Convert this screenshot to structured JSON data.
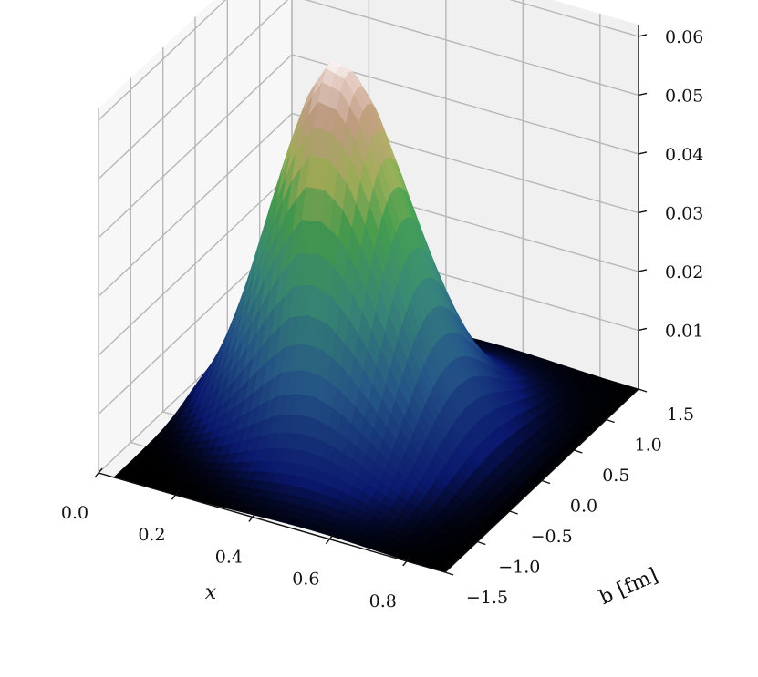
{
  "chart_data": {
    "type": "surface",
    "title": "",
    "xlabel": "x",
    "ylabel": "b [fm]",
    "zlabel": "",
    "xlim": [
      0.0,
      0.9
    ],
    "ylim": [
      -1.5,
      1.5
    ],
    "zlim": [
      0.0,
      0.062
    ],
    "x_ticks": [
      0.0,
      0.2,
      0.4,
      0.6,
      0.8
    ],
    "x_tick_labels": [
      "0.0",
      "0.2",
      "0.4",
      "0.6",
      "0.8"
    ],
    "y_ticks": [
      -1.5,
      -1.0,
      -0.5,
      0.0,
      0.5,
      1.0,
      1.5
    ],
    "y_tick_labels": [
      "−1.5",
      "−1.0",
      "−0.5",
      "0.0",
      "0.5",
      "1.0",
      "1.5"
    ],
    "z_ticks": [
      0.01,
      0.02,
      0.03,
      0.04,
      0.05,
      0.06
    ],
    "z_tick_labels": [
      "0.01",
      "0.02",
      "0.03",
      "0.04",
      "0.05",
      "0.06"
    ],
    "grid": true,
    "colormap": "gist_earth",
    "surface": {
      "peak_value": 0.061,
      "peak_x": 0.35,
      "peak_b": 0.0,
      "x_samples": [
        0.0,
        0.05,
        0.1,
        0.15,
        0.2,
        0.25,
        0.3,
        0.35,
        0.4,
        0.45,
        0.5,
        0.55,
        0.6,
        0.65,
        0.7,
        0.75,
        0.8,
        0.85,
        0.9
      ],
      "profile_at_b0": [
        0.0,
        0.004,
        0.011,
        0.021,
        0.033,
        0.045,
        0.055,
        0.061,
        0.06,
        0.055,
        0.046,
        0.036,
        0.026,
        0.017,
        0.01,
        0.005,
        0.002,
        0.001,
        0.0
      ],
      "b_width_fm": 0.6
    },
    "colors": {
      "pane_left": "#f7f7f7",
      "pane_back": "#f0f0f0",
      "pane_floor": "#f4f4f4",
      "grid": "#b7b7b7",
      "axis_line": "#111111"
    }
  }
}
